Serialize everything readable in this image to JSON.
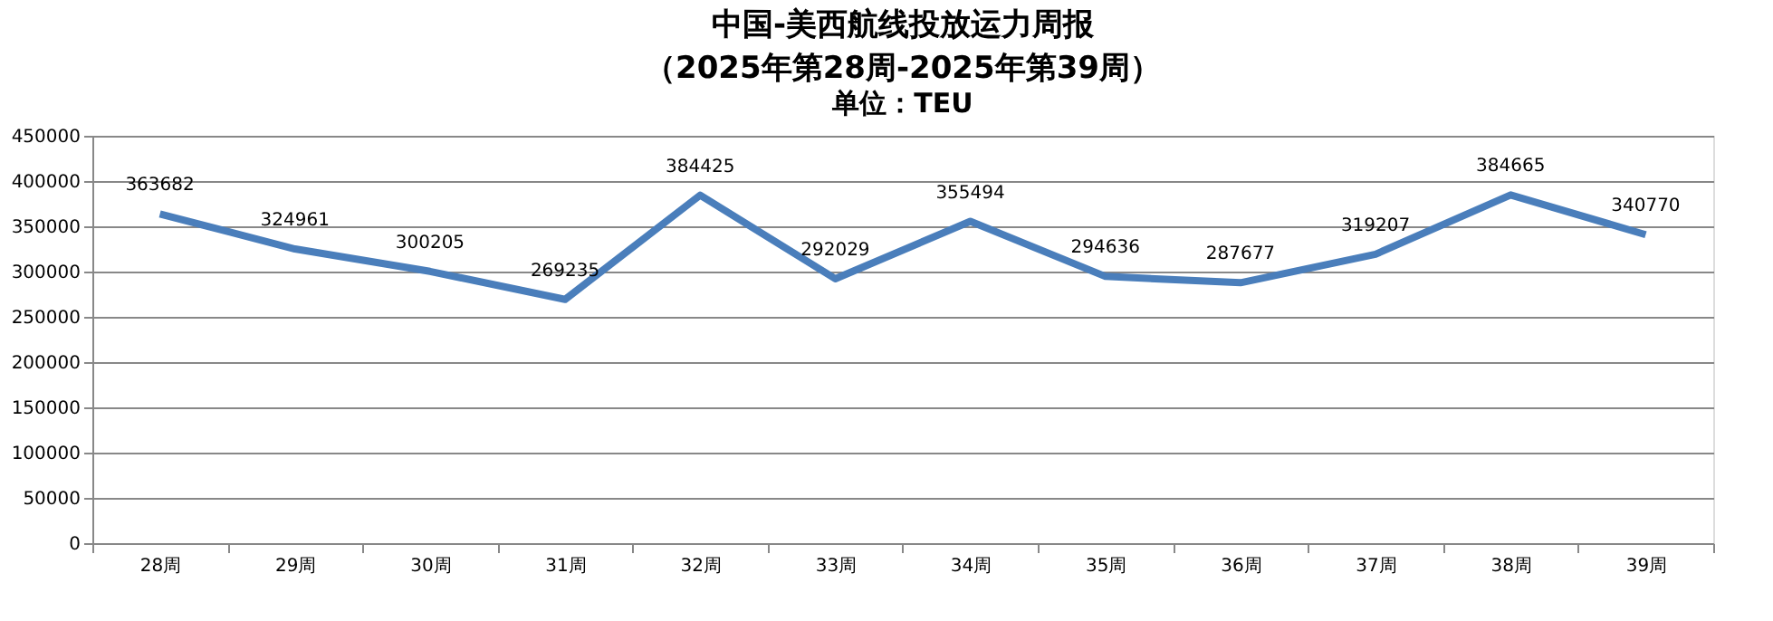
{
  "chart_data": {
    "type": "line",
    "title": [
      "中国-美西航线投放运力周报",
      "（2025年第28周-2025年第39周）"
    ],
    "subtitle": "单位：TEU",
    "categories": [
      "28周",
      "29周",
      "30周",
      "31周",
      "32周",
      "33周",
      "34周",
      "35周",
      "36周",
      "37周",
      "38周",
      "39周"
    ],
    "values": [
      363682,
      324961,
      300205,
      269235,
      384425,
      292029,
      355494,
      294636,
      287677,
      319207,
      384665,
      340770
    ],
    "color": "#4a7ebb",
    "ylim": [
      0,
      450000
    ],
    "yticks": [
      0,
      50000,
      100000,
      150000,
      200000,
      250000,
      300000,
      350000,
      400000,
      450000
    ],
    "grid": "y",
    "data_labels": true,
    "marker": "none",
    "line_style": "solid"
  }
}
